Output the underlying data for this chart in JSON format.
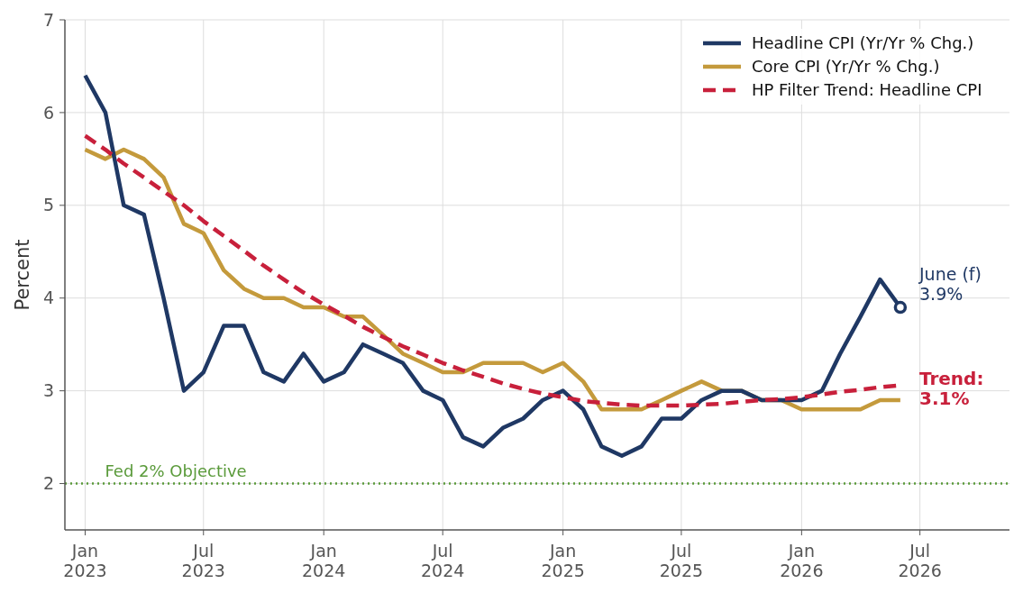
{
  "chart_data": {
    "type": "line",
    "ylabel": "Percent",
    "x": [
      "2023-01",
      "2023-02",
      "2023-03",
      "2023-04",
      "2023-05",
      "2023-06",
      "2023-07",
      "2023-08",
      "2023-09",
      "2023-10",
      "2023-11",
      "2023-12",
      "2024-01",
      "2024-02",
      "2024-03",
      "2024-04",
      "2024-05",
      "2024-06",
      "2024-07",
      "2024-08",
      "2024-09",
      "2024-10",
      "2024-11",
      "2024-12",
      "2025-01",
      "2025-02",
      "2025-03",
      "2025-04",
      "2025-05",
      "2025-06",
      "2025-07",
      "2025-08",
      "2025-09",
      "2025-10",
      "2025-11",
      "2025-12",
      "2026-01",
      "2026-02",
      "2026-03",
      "2026-04",
      "2026-05",
      "2026-06"
    ],
    "series": [
      {
        "name": "Headline CPI (Yr/Yr % Chg.)",
        "color": "#1f3864",
        "values": [
          6.4,
          6.0,
          5.0,
          4.9,
          4.0,
          3.0,
          3.2,
          3.7,
          3.7,
          3.2,
          3.1,
          3.4,
          3.1,
          3.2,
          3.5,
          3.4,
          3.3,
          3.0,
          2.9,
          2.5,
          2.4,
          2.6,
          2.7,
          2.9,
          3.0,
          2.8,
          2.4,
          2.3,
          2.4,
          2.7,
          2.7,
          2.9,
          3.0,
          3.0,
          2.9,
          2.9,
          2.9,
          3.0,
          3.4,
          3.8,
          4.2,
          3.9
        ]
      },
      {
        "name": "Core CPI (Yr/Yr % Chg.)",
        "color": "#c49a3c",
        "values": [
          5.6,
          5.5,
          5.6,
          5.5,
          5.3,
          4.8,
          4.7,
          4.3,
          4.1,
          4.0,
          4.0,
          3.9,
          3.9,
          3.8,
          3.8,
          3.6,
          3.4,
          3.3,
          3.2,
          3.2,
          3.3,
          3.3,
          3.3,
          3.2,
          3.3,
          3.1,
          2.8,
          2.8,
          2.8,
          2.9,
          3.0,
          3.1,
          3.0,
          3.0,
          2.9,
          2.9,
          2.8,
          2.8,
          2.8,
          2.8,
          2.9,
          2.9
        ]
      },
      {
        "name": "HP Filter Trend: Headline CPI",
        "color": "#c8203b",
        "line_style": "dashed",
        "values": [
          5.75,
          5.6,
          5.45,
          5.3,
          5.15,
          5.0,
          4.83,
          4.67,
          4.51,
          4.35,
          4.2,
          4.06,
          3.93,
          3.81,
          3.69,
          3.58,
          3.48,
          3.39,
          3.3,
          3.22,
          3.15,
          3.08,
          3.02,
          2.97,
          2.93,
          2.89,
          2.87,
          2.85,
          2.84,
          2.84,
          2.84,
          2.85,
          2.86,
          2.88,
          2.9,
          2.91,
          2.93,
          2.96,
          2.99,
          3.01,
          3.04,
          3.06
        ]
      },
      {
        "type": "scatter",
        "color": "#1f3864",
        "marker": "circle",
        "x": [
          "2026-06"
        ],
        "values": [
          3.9
        ]
      }
    ],
    "xlim": [
      "2022-12-01",
      "2026-11-15"
    ],
    "xticks": [
      {
        "value": "2023-01",
        "label": "Jan\n2023"
      },
      {
        "value": "2023-07",
        "label": "Jul\n2023"
      },
      {
        "value": "2024-01",
        "label": "Jan\n2024"
      },
      {
        "value": "2024-07",
        "label": "Jul\n2024"
      },
      {
        "value": "2025-01",
        "label": "Jan\n2025"
      },
      {
        "value": "2025-07",
        "label": "Jul\n2025"
      },
      {
        "value": "2026-01",
        "label": "Jan\n2026"
      },
      {
        "value": "2026-07",
        "label": "Jul\n2026"
      }
    ],
    "ylim": [
      1.5,
      7
    ],
    "yticks": [
      2,
      3,
      4,
      5,
      6,
      7
    ],
    "grid": true,
    "legend": "top right",
    "ref_lines": [
      {
        "axis": "y",
        "value": 2,
        "label": "Fed 2% Objective",
        "color": "#5a9a3a",
        "line_style": "dotted"
      }
    ],
    "annotations": [
      {
        "text": "June (f)\n3.9%",
        "x": "2026-06",
        "y": 3.9
      },
      {
        "text": "Trend:\n3.1%",
        "x": "2026-06",
        "y": 3.06
      }
    ]
  }
}
